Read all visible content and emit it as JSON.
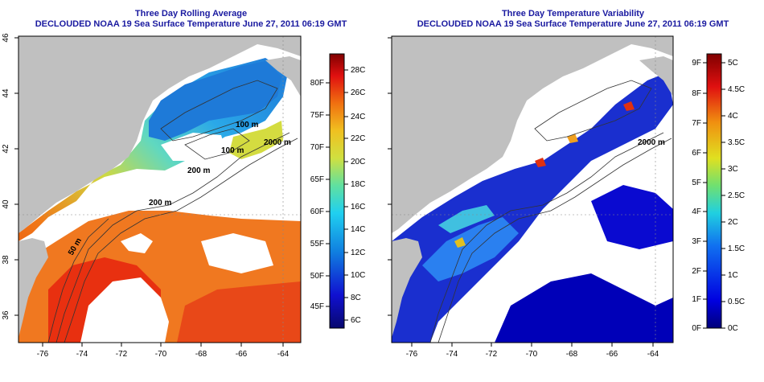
{
  "left_panel": {
    "title": "Three Day Rolling Average",
    "subtitle": "DECLOUDED NOAA 19 Sea Surface Temperature June 27, 2011 06:19 GMT",
    "colorbar_c_labels": [
      "28C",
      "26C",
      "24C",
      "22C",
      "20C",
      "18C",
      "16C",
      "14C",
      "12C",
      "10C",
      "8C",
      "6C"
    ],
    "colorbar_f_labels": [
      "80F",
      "75F",
      "70F",
      "65F",
      "60F",
      "55F",
      "50F",
      "45F"
    ],
    "contour_labels": [
      "100 m",
      "2000 m",
      "100 m",
      "200 m",
      "200 m",
      "50 m"
    ]
  },
  "right_panel": {
    "title": "Three Day Temperature Variability",
    "subtitle": "DECLOUDED NOAA 19 Sea Surface Temperature June 27, 2011 06:19 GMT",
    "colorbar_c_labels": [
      "5C",
      "4.5C",
      "4C",
      "3.5C",
      "3C",
      "2.5C",
      "2C",
      "1.5C",
      "1C",
      "0.5C",
      "0C"
    ],
    "colorbar_f_labels": [
      "9F",
      "8F",
      "7F",
      "6F",
      "5F",
      "4F",
      "3F",
      "2F",
      "1F",
      "0F"
    ],
    "contour_labels": [
      "2000 m"
    ]
  },
  "axes": {
    "lon_ticks": [
      "-76",
      "-74",
      "-72",
      "-70",
      "-68",
      "-66",
      "-64"
    ],
    "lat_ticks": [
      "46",
      "44",
      "42",
      "40",
      "38",
      "36"
    ]
  },
  "colors": {
    "land": "#c0c0c0",
    "title": "#1a1aa0",
    "no_data": "#ffffff"
  }
}
